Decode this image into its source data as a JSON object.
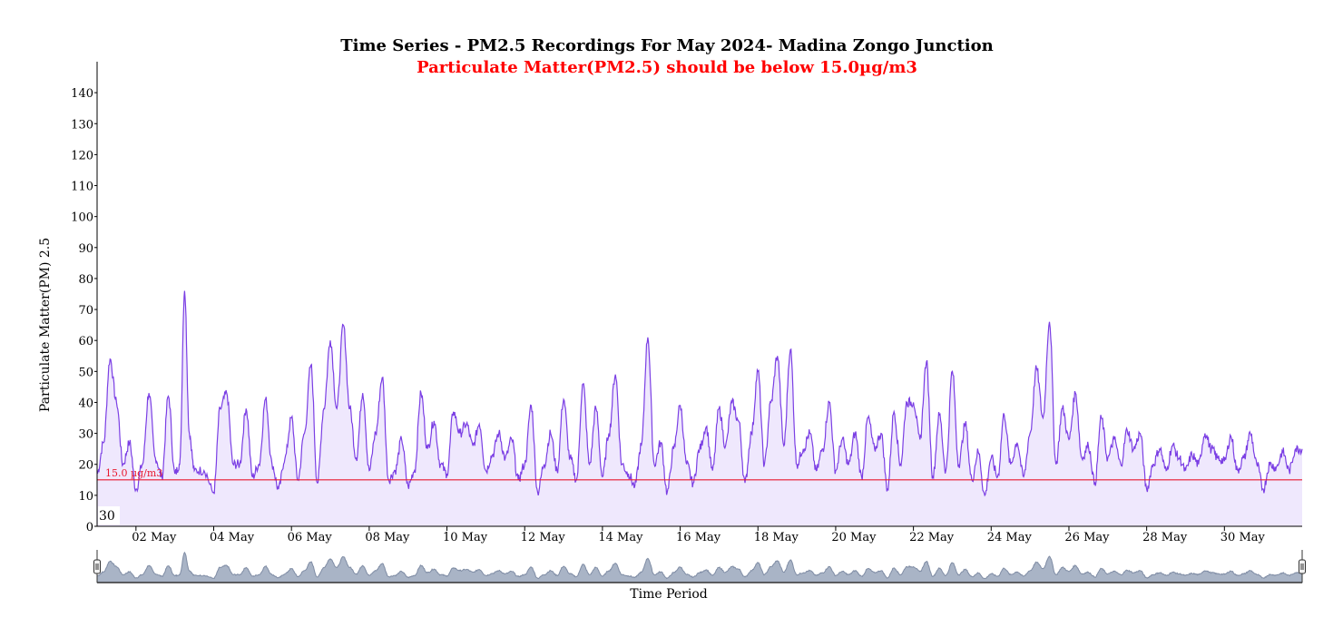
{
  "chart_data": {
    "type": "area",
    "title": "Time Series - PM2.5 Recordings For May 2024- Madina Zongo Junction",
    "subtitle": "Particulate Matter(PM2.5) should be below 15.0µg/m3",
    "ylabel": "Particulate Matter(PM) 2.5",
    "xlabel": "Time Period",
    "ylim": [
      0,
      150
    ],
    "y_ticks": [
      0,
      10,
      20,
      30,
      40,
      50,
      60,
      70,
      80,
      90,
      100,
      110,
      120,
      130,
      140
    ],
    "x_range": [
      "2024-05-01",
      "2024-06-01"
    ],
    "x_ticks": [
      "02 May",
      "04 May",
      "06 May",
      "08 May",
      "10 May",
      "12 May",
      "14 May",
      "16 May",
      "18 May",
      "20 May",
      "22 May",
      "24 May",
      "26 May",
      "28 May",
      "30 May"
    ],
    "threshold": {
      "value": 15.0,
      "label": "15.0 µg/m3",
      "color": "#e8182f"
    },
    "overlay_text": "30",
    "series": [
      {
        "color": "#7b3fe4",
        "fill": "#efe8fd",
        "points": [
          [
            "2024-05-01 00:00",
            17
          ],
          [
            "2024-05-01 04:00",
            27
          ],
          [
            "2024-05-01 08:00",
            54
          ],
          [
            "2024-05-01 12:00",
            40
          ],
          [
            "2024-05-01 16:00",
            20
          ],
          [
            "2024-05-01 20:00",
            27
          ],
          [
            "2024-05-02 00:00",
            12
          ],
          [
            "2024-05-02 04:00",
            20
          ],
          [
            "2024-05-02 08:00",
            43
          ],
          [
            "2024-05-02 12:00",
            22
          ],
          [
            "2024-05-02 16:00",
            16
          ],
          [
            "2024-05-02 20:00",
            42
          ],
          [
            "2024-05-03 00:00",
            17
          ],
          [
            "2024-05-03 03:00",
            20
          ],
          [
            "2024-05-03 06:00",
            76
          ],
          [
            "2024-05-03 09:00",
            30
          ],
          [
            "2024-05-03 12:00",
            18
          ],
          [
            "2024-05-03 18:00",
            18
          ],
          [
            "2024-05-04 00:00",
            11
          ],
          [
            "2024-05-04 04:00",
            38
          ],
          [
            "2024-05-04 08:00",
            43
          ],
          [
            "2024-05-04 12:00",
            20
          ],
          [
            "2024-05-04 16:00",
            20
          ],
          [
            "2024-05-04 20:00",
            38
          ],
          [
            "2024-05-05 00:00",
            16
          ],
          [
            "2024-05-05 04:00",
            20
          ],
          [
            "2024-05-05 08:00",
            41
          ],
          [
            "2024-05-05 12:00",
            20
          ],
          [
            "2024-05-05 16:00",
            12
          ],
          [
            "2024-05-05 20:00",
            22
          ],
          [
            "2024-05-06 00:00",
            35
          ],
          [
            "2024-05-06 04:00",
            15
          ],
          [
            "2024-05-06 08:00",
            30
          ],
          [
            "2024-05-06 12:00",
            52
          ],
          [
            "2024-05-06 16:00",
            14
          ],
          [
            "2024-05-06 20:00",
            38
          ],
          [
            "2024-05-07 00:00",
            60
          ],
          [
            "2024-05-07 04:00",
            38
          ],
          [
            "2024-05-07 08:00",
            65
          ],
          [
            "2024-05-07 12:00",
            38
          ],
          [
            "2024-05-07 16:00",
            22
          ],
          [
            "2024-05-07 20:00",
            43
          ],
          [
            "2024-05-08 00:00",
            18
          ],
          [
            "2024-05-08 04:00",
            30
          ],
          [
            "2024-05-08 08:00",
            48
          ],
          [
            "2024-05-08 12:00",
            15
          ],
          [
            "2024-05-08 16:00",
            18
          ],
          [
            "2024-05-08 20:00",
            28
          ],
          [
            "2024-05-09 00:00",
            13
          ],
          [
            "2024-05-09 04:00",
            18
          ],
          [
            "2024-05-09 08:00",
            43
          ],
          [
            "2024-05-09 12:00",
            25
          ],
          [
            "2024-05-09 16:00",
            34
          ],
          [
            "2024-05-09 20:00",
            20
          ],
          [
            "2024-05-10 00:00",
            17
          ],
          [
            "2024-05-10 04:00",
            37
          ],
          [
            "2024-05-10 08:00",
            30
          ],
          [
            "2024-05-10 12:00",
            33
          ],
          [
            "2024-05-10 16:00",
            26
          ],
          [
            "2024-05-10 20:00",
            33
          ],
          [
            "2024-05-11 00:00",
            18
          ],
          [
            "2024-05-11 04:00",
            23
          ],
          [
            "2024-05-11 08:00",
            30
          ],
          [
            "2024-05-11 12:00",
            22
          ],
          [
            "2024-05-11 16:00",
            28
          ],
          [
            "2024-05-11 20:00",
            15
          ],
          [
            "2024-05-12 00:00",
            20
          ],
          [
            "2024-05-12 04:00",
            39
          ],
          [
            "2024-05-12 08:00",
            11
          ],
          [
            "2024-05-12 12:00",
            20
          ],
          [
            "2024-05-12 16:00",
            30
          ],
          [
            "2024-05-12 20:00",
            18
          ],
          [
            "2024-05-13 00:00",
            41
          ],
          [
            "2024-05-13 04:00",
            22
          ],
          [
            "2024-05-13 08:00",
            15
          ],
          [
            "2024-05-13 12:00",
            46
          ],
          [
            "2024-05-13 16:00",
            20
          ],
          [
            "2024-05-13 20:00",
            38
          ],
          [
            "2024-05-14 00:00",
            16
          ],
          [
            "2024-05-14 04:00",
            30
          ],
          [
            "2024-05-14 08:00",
            49
          ],
          [
            "2024-05-14 12:00",
            20
          ],
          [
            "2024-05-14 16:00",
            17
          ],
          [
            "2024-05-14 20:00",
            13
          ],
          [
            "2024-05-15 00:00",
            26
          ],
          [
            "2024-05-15 04:00",
            61
          ],
          [
            "2024-05-15 08:00",
            20
          ],
          [
            "2024-05-15 12:00",
            27
          ],
          [
            "2024-05-15 16:00",
            11
          ],
          [
            "2024-05-15 20:00",
            25
          ],
          [
            "2024-05-16 00:00",
            39
          ],
          [
            "2024-05-16 04:00",
            20
          ],
          [
            "2024-05-16 08:00",
            14
          ],
          [
            "2024-05-16 12:00",
            25
          ],
          [
            "2024-05-16 16:00",
            32
          ],
          [
            "2024-05-16 20:00",
            18
          ],
          [
            "2024-05-17 00:00",
            38
          ],
          [
            "2024-05-17 04:00",
            26
          ],
          [
            "2024-05-17 08:00",
            40
          ],
          [
            "2024-05-17 12:00",
            34
          ],
          [
            "2024-05-17 16:00",
            14
          ],
          [
            "2024-05-17 20:00",
            30
          ],
          [
            "2024-05-18 00:00",
            50
          ],
          [
            "2024-05-18 04:00",
            20
          ],
          [
            "2024-05-18 08:00",
            40
          ],
          [
            "2024-05-18 12:00",
            55
          ],
          [
            "2024-05-18 16:00",
            26
          ],
          [
            "2024-05-18 20:00",
            57
          ],
          [
            "2024-05-19 00:00",
            20
          ],
          [
            "2024-05-19 04:00",
            25
          ],
          [
            "2024-05-19 08:00",
            30
          ],
          [
            "2024-05-19 12:00",
            18
          ],
          [
            "2024-05-19 16:00",
            25
          ],
          [
            "2024-05-19 20:00",
            40
          ],
          [
            "2024-05-20 00:00",
            18
          ],
          [
            "2024-05-20 04:00",
            28
          ],
          [
            "2024-05-20 08:00",
            20
          ],
          [
            "2024-05-20 12:00",
            30
          ],
          [
            "2024-05-20 16:00",
            16
          ],
          [
            "2024-05-20 20:00",
            35
          ],
          [
            "2024-05-21 00:00",
            25
          ],
          [
            "2024-05-21 04:00",
            30
          ],
          [
            "2024-05-21 08:00",
            12
          ],
          [
            "2024-05-21 12:00",
            37
          ],
          [
            "2024-05-21 16:00",
            20
          ],
          [
            "2024-05-21 20:00",
            40
          ],
          [
            "2024-05-22 00:00",
            40
          ],
          [
            "2024-05-22 04:00",
            28
          ],
          [
            "2024-05-22 08:00",
            53
          ],
          [
            "2024-05-22 12:00",
            16
          ],
          [
            "2024-05-22 16:00",
            36
          ],
          [
            "2024-05-22 20:00",
            18
          ],
          [
            "2024-05-23 00:00",
            50
          ],
          [
            "2024-05-23 04:00",
            20
          ],
          [
            "2024-05-23 08:00",
            33
          ],
          [
            "2024-05-23 12:00",
            15
          ],
          [
            "2024-05-23 16:00",
            24
          ],
          [
            "2024-05-23 20:00",
            10
          ],
          [
            "2024-05-24 00:00",
            22
          ],
          [
            "2024-05-24 04:00",
            16
          ],
          [
            "2024-05-24 08:00",
            36
          ],
          [
            "2024-05-24 12:00",
            20
          ],
          [
            "2024-05-24 16:00",
            27
          ],
          [
            "2024-05-24 20:00",
            16
          ],
          [
            "2024-05-25 00:00",
            30
          ],
          [
            "2024-05-25 04:00",
            51
          ],
          [
            "2024-05-25 08:00",
            35
          ],
          [
            "2024-05-25 12:00",
            66
          ],
          [
            "2024-05-25 16:00",
            20
          ],
          [
            "2024-05-25 20:00",
            38
          ],
          [
            "2024-05-26 00:00",
            28
          ],
          [
            "2024-05-26 04:00",
            43
          ],
          [
            "2024-05-26 08:00",
            22
          ],
          [
            "2024-05-26 12:00",
            26
          ],
          [
            "2024-05-26 16:00",
            14
          ],
          [
            "2024-05-26 20:00",
            35
          ],
          [
            "2024-05-27 00:00",
            22
          ],
          [
            "2024-05-27 04:00",
            28
          ],
          [
            "2024-05-27 08:00",
            20
          ],
          [
            "2024-05-27 12:00",
            31
          ],
          [
            "2024-05-27 16:00",
            25
          ],
          [
            "2024-05-27 20:00",
            30
          ],
          [
            "2024-05-28 00:00",
            12
          ],
          [
            "2024-05-28 04:00",
            20
          ],
          [
            "2024-05-28 08:00",
            25
          ],
          [
            "2024-05-28 12:00",
            18
          ],
          [
            "2024-05-28 16:00",
            26
          ],
          [
            "2024-05-28 20:00",
            22
          ],
          [
            "2024-05-29 00:00",
            18
          ],
          [
            "2024-05-29 04:00",
            23
          ],
          [
            "2024-05-29 08:00",
            20
          ],
          [
            "2024-05-29 12:00",
            30
          ],
          [
            "2024-05-29 16:00",
            25
          ],
          [
            "2024-05-29 20:00",
            22
          ],
          [
            "2024-05-30 00:00",
            21
          ],
          [
            "2024-05-30 04:00",
            29
          ],
          [
            "2024-05-30 08:00",
            18
          ],
          [
            "2024-05-30 12:00",
            22
          ],
          [
            "2024-05-30 16:00",
            30
          ],
          [
            "2024-05-30 20:00",
            20
          ],
          [
            "2024-05-31 00:00",
            12
          ],
          [
            "2024-05-31 04:00",
            20
          ],
          [
            "2024-05-31 08:00",
            19
          ],
          [
            "2024-05-31 12:00",
            24
          ],
          [
            "2024-05-31 16:00",
            18
          ],
          [
            "2024-05-31 20:00",
            25
          ],
          [
            "2024-06-01 00:00",
            25
          ]
        ]
      }
    ]
  },
  "colors": {
    "line": "#7b3fe4",
    "fill": "#efe8fd",
    "threshold": "#e8182f",
    "navigator_fill": "#a9b4c6",
    "navigator_line": "#7f8ca4"
  },
  "icons": {
    "navigator_left_handle": "drag-handle-icon",
    "navigator_right_handle": "drag-handle-icon"
  }
}
